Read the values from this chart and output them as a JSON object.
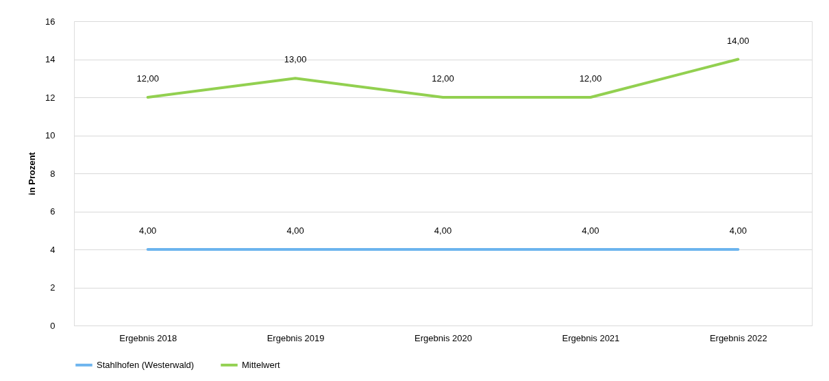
{
  "chart_data": {
    "type": "line",
    "ylabel": "in Prozent",
    "categories": [
      "Ergebnis 2018",
      "Ergebnis 2019",
      "Ergebnis 2020",
      "Ergebnis 2021",
      "Ergebnis 2022"
    ],
    "series": [
      {
        "name": "Stahlhofen (Westerwald)",
        "color": "#6cb4ee",
        "values": [
          4,
          4,
          4,
          4,
          4
        ],
        "value_labels": [
          "4,00",
          "4,00",
          "4,00",
          "4,00",
          "4,00"
        ]
      },
      {
        "name": "Mittelwert",
        "color": "#92d050",
        "values": [
          12,
          13,
          12,
          12,
          14
        ],
        "value_labels": [
          "12,00",
          "13,00",
          "12,00",
          "12,00",
          "14,00"
        ]
      }
    ],
    "ylim": [
      0,
      16
    ],
    "yticks": [
      0,
      2,
      4,
      6,
      8,
      10,
      12,
      14,
      16
    ],
    "grid": "y",
    "legend": "bottom",
    "marker": "none",
    "line_style": "solid"
  }
}
